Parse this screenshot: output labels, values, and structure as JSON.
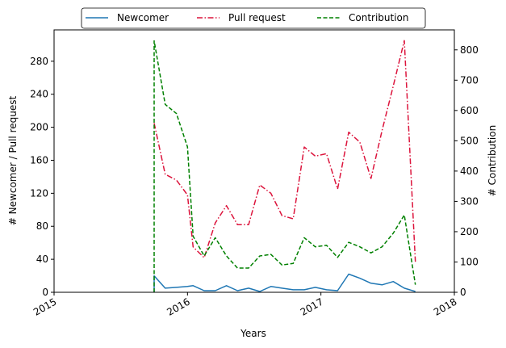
{
  "chart_data": {
    "type": "line",
    "xlabel": "Years",
    "ylabel_left": "# Newcomer / Pull request",
    "ylabel_right": "# Contribution",
    "xlim": [
      2015.0,
      2018.0
    ],
    "ylim_left": [
      0,
      318
    ],
    "ylim_right": [
      0,
      866
    ],
    "x_ticks": [
      2015,
      2016,
      2017,
      2018
    ],
    "x_tick_labels": [
      "2015",
      "2016",
      "2017",
      "2018"
    ],
    "y_ticks_left": [
      0,
      40,
      80,
      120,
      160,
      200,
      240,
      280
    ],
    "y_ticks_right": [
      0,
      100,
      200,
      300,
      400,
      500,
      600,
      700,
      800
    ],
    "legend_position": "top-center",
    "grid": false,
    "series": [
      {
        "name": "Newcomer",
        "axis": "left",
        "color": "#1f77b4",
        "style": "solid",
        "x": [
          2015.75,
          2015.75,
          2015.833,
          2015.917,
          2016.0,
          2016.042,
          2016.125,
          2016.208,
          2016.292,
          2016.375,
          2016.458,
          2016.542,
          2016.625,
          2016.708,
          2016.792,
          2016.875,
          2016.958,
          2017.042,
          2017.125,
          2017.208,
          2017.292,
          2017.375,
          2017.458,
          2017.542,
          2017.625,
          2017.708
        ],
        "values": [
          0,
          20,
          5,
          6,
          7,
          8,
          2,
          2,
          8,
          2,
          5,
          1,
          7,
          5,
          3,
          3,
          6,
          3,
          2,
          22,
          17,
          11,
          9,
          13,
          5,
          1
        ]
      },
      {
        "name": "Pull request",
        "axis": "left",
        "color": "#dc143c",
        "style": "dashdot",
        "x": [
          2015.75,
          2015.833,
          2015.917,
          2016.0,
          2016.042,
          2016.125,
          2016.208,
          2016.292,
          2016.375,
          2016.458,
          2016.542,
          2016.625,
          2016.708,
          2016.792,
          2016.875,
          2016.958,
          2017.042,
          2017.125,
          2017.208,
          2017.292,
          2017.375,
          2017.458,
          2017.542,
          2017.625,
          2017.708
        ],
        "values": [
          205,
          143,
          136,
          118,
          55,
          42,
          84,
          105,
          82,
          82,
          130,
          120,
          93,
          89,
          176,
          165,
          168,
          125,
          194,
          182,
          138,
          196,
          250,
          305,
          37
        ]
      },
      {
        "name": "Contribution",
        "axis": "right",
        "color": "#008000",
        "style": "dashed",
        "x": [
          2015.75,
          2015.75,
          2015.833,
          2015.917,
          2016.0,
          2016.042,
          2016.125,
          2016.208,
          2016.292,
          2016.375,
          2016.458,
          2016.542,
          2016.625,
          2016.708,
          2016.792,
          2016.875,
          2016.958,
          2017.042,
          2017.125,
          2017.208,
          2017.292,
          2017.375,
          2017.458,
          2017.542,
          2017.625,
          2017.708
        ],
        "values": [
          0,
          830,
          620,
          590,
          480,
          185,
          120,
          180,
          120,
          80,
          80,
          120,
          125,
          90,
          95,
          180,
          150,
          155,
          115,
          165,
          150,
          130,
          150,
          195,
          255,
          25
        ]
      }
    ]
  }
}
